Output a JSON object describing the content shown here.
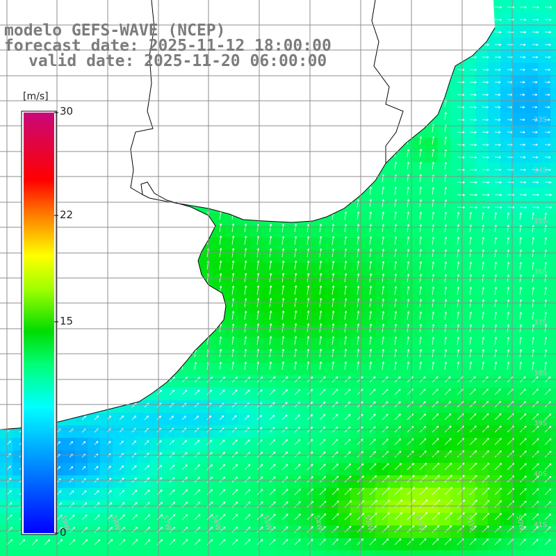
{
  "title": {
    "line1": "modelo GEFS-WAVE (NCEP)",
    "line2": "forecast date: 2025-11-12 18:00:00",
    "line3": "valid date: 2025-11-20 06:00:00"
  },
  "colorbar": {
    "unit": "[m/s]",
    "min": 0,
    "max": 30,
    "ticks": [
      "30",
      "22",
      "15",
      "0"
    ],
    "colors": [
      "#0000ff",
      "#0078ff",
      "#00d8ff",
      "#00ffc8",
      "#00ff78",
      "#00e000",
      "#78ff00",
      "#ffff00",
      "#ffa000",
      "#ff4000",
      "#ff0000",
      "#e00050",
      "#c8087a"
    ]
  },
  "map": {
    "lon_range": [
      -59.5,
      -49.5
    ],
    "lat_range": [
      -41.8,
      -30.2
    ],
    "lat_labels": [
      "33S",
      "34S",
      "35S",
      "36S",
      "37S",
      "38S",
      "39S",
      "40S",
      "41S"
    ],
    "lon_labels": [
      "59W",
      "58W",
      "57W",
      "56W",
      "55W",
      "54W",
      "53W",
      "52W",
      "51W",
      "50W"
    ],
    "grid_color": "#8c8c8c",
    "coast_color": "#000000",
    "land_color": "#ffffff",
    "vector_color": "#ffffff"
  }
}
